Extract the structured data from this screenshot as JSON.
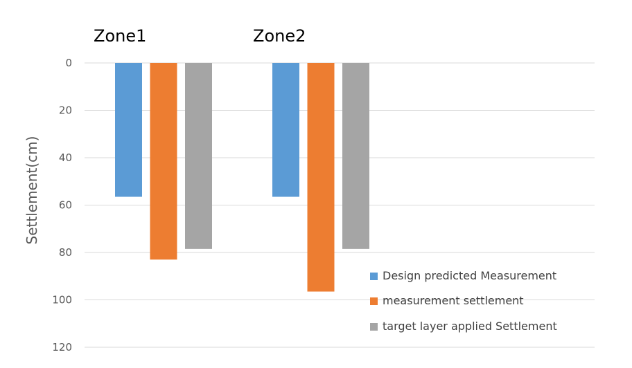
{
  "chart_data": {
    "type": "bar",
    "title": "",
    "xlabel": "",
    "ylabel": "Settlement(cm)",
    "ylim": [
      0,
      120
    ],
    "y_inverted": true,
    "y_ticks": [
      0,
      20,
      40,
      60,
      80,
      100,
      120
    ],
    "y_tick_labels": [
      "0",
      "20",
      "40",
      "60",
      "80",
      "100",
      "120"
    ],
    "grid": true,
    "legend_position": "bottom-right",
    "categories": [
      "Zone1",
      "Zone2"
    ],
    "series": [
      {
        "name": "Design predicted Measurement",
        "color": "#5b9bd5",
        "values": [
          56.5,
          56.5
        ]
      },
      {
        "name": "measurement settlement",
        "color": "#ed7d31",
        "values": [
          83,
          96.5
        ]
      },
      {
        "name": "target layer applied Settlement",
        "color": "#a5a5a5",
        "values": [
          78.5,
          78.5
        ]
      }
    ]
  }
}
